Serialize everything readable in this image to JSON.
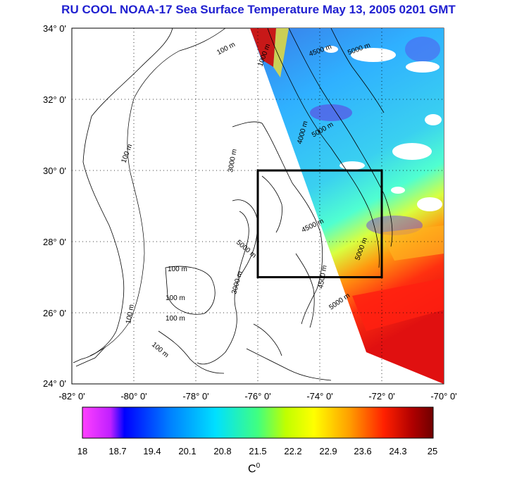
{
  "title": "RU COOL  NOAA-17 Sea Surface Temperature May 13, 2005 0201 GMT",
  "map": {
    "lon_range": [
      -82,
      -70
    ],
    "lat_range": [
      24,
      34
    ],
    "lat_ticks": [
      "24° 0'",
      "26° 0'",
      "28° 0'",
      "30° 0'",
      "32° 0'",
      "34° 0'"
    ],
    "lon_ticks": [
      "-82° 0'",
      "-80° 0'",
      "-78° 0'",
      "-76° 0'",
      "-74° 0'",
      "-72° 0'",
      "-70° 0'"
    ],
    "study_box": {
      "lon_min": -76,
      "lon_max": -72,
      "lat_min": 27,
      "lat_max": 30
    },
    "contour_labels": [
      "100 m",
      "1000 m",
      "3000 m",
      "4000 m",
      "4500 m",
      "5000 m"
    ],
    "grid": true
  },
  "colorbar": {
    "min": 18,
    "max": 25,
    "ticks": [
      "18",
      "18.7",
      "19.4",
      "20.1",
      "20.8",
      "21.5",
      "22.2",
      "22.9",
      "23.6",
      "24.3",
      "25"
    ],
    "unit": "C",
    "unit_sup": "0",
    "colors": [
      "#ff40ff",
      "#c020ff",
      "#0000ff",
      "#0080ff",
      "#00e0ff",
      "#40ff80",
      "#c0ff00",
      "#ffff00",
      "#ffa000",
      "#ff2000",
      "#b00000",
      "#700000"
    ]
  }
}
